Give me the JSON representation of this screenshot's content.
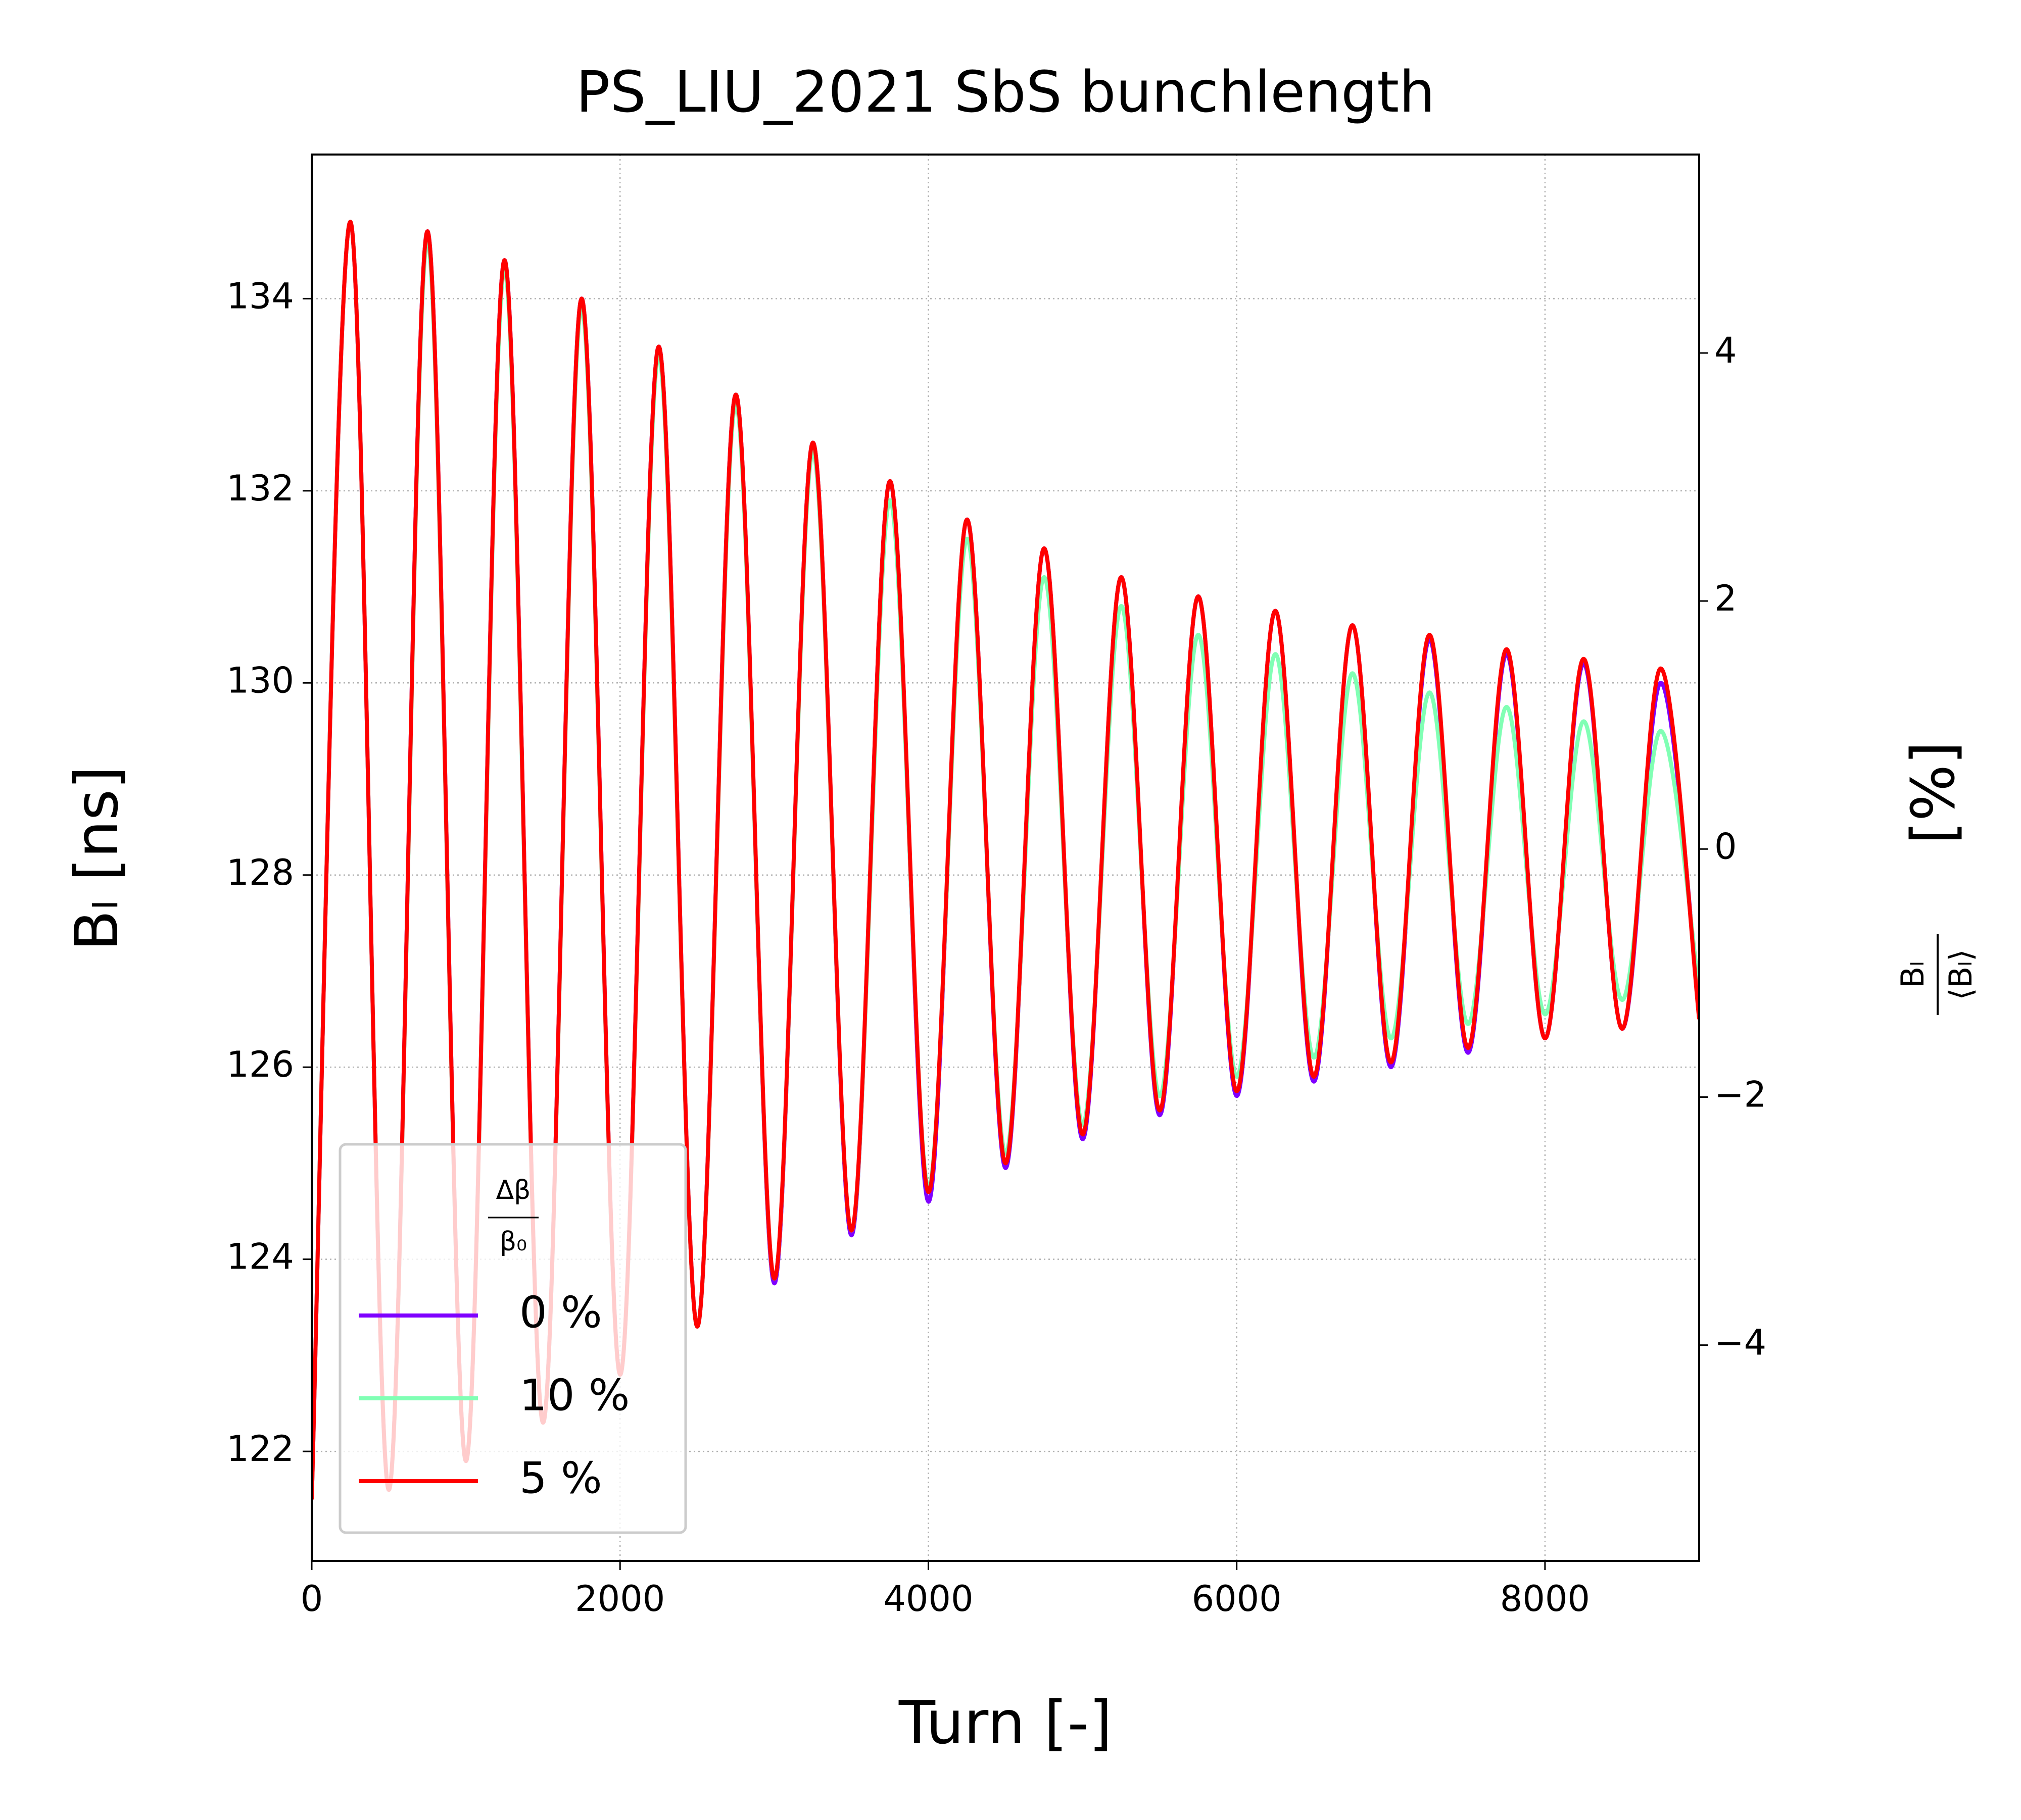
{
  "chart_data": {
    "type": "line",
    "title": "PS_LIU_2021 SbS bunchlength",
    "xlabel": "Turn [-]",
    "ylabel": "Bₗ [ns]",
    "y2label": {
      "numerator": "Bₗ",
      "denominator": "⟨Bₗ⟩",
      "unit": "[%]"
    },
    "legend_title": {
      "numerator": "Δβ",
      "denominator": "β₀"
    },
    "legend": "lower left",
    "grid": true,
    "x": [
      0,
      250,
      500,
      750,
      1000,
      1250,
      1500,
      1750,
      2000,
      2250,
      2500,
      2750,
      3000,
      3250,
      3500,
      3750,
      4000,
      4250,
      4500,
      4750,
      5000,
      5250,
      5500,
      5750,
      6000,
      6250,
      6500,
      6750,
      7000,
      7250,
      7500,
      7750,
      8000,
      8250,
      8500,
      8750,
      9000
    ],
    "series": [
      {
        "name": "0 %",
        "color": "#7f00ff",
        "values": [
          121.5,
          134.8,
          121.6,
          134.7,
          121.9,
          134.4,
          122.3,
          134.0,
          122.8,
          133.5,
          123.3,
          133.0,
          123.75,
          132.5,
          124.25,
          132.1,
          124.6,
          131.7,
          124.95,
          131.4,
          125.25,
          131.1,
          125.5,
          130.9,
          125.7,
          130.75,
          125.85,
          130.6,
          126.0,
          130.45,
          126.15,
          130.3,
          126.3,
          130.2,
          126.4,
          130.0,
          126.6
        ]
      },
      {
        "name": "10 %",
        "color": "#80ffb4",
        "values": [
          121.5,
          134.8,
          121.6,
          134.6,
          121.9,
          134.3,
          122.3,
          133.9,
          122.8,
          133.4,
          123.3,
          132.9,
          123.8,
          132.4,
          124.3,
          131.9,
          124.75,
          131.5,
          125.1,
          131.1,
          125.4,
          130.8,
          125.7,
          130.5,
          125.9,
          130.3,
          126.1,
          130.1,
          126.3,
          129.9,
          126.45,
          129.75,
          126.55,
          129.6,
          126.7,
          129.5,
          126.8
        ]
      },
      {
        "name": "5 %",
        "color": "#ff0000",
        "values": [
          121.5,
          134.8,
          121.6,
          134.7,
          121.9,
          134.4,
          122.3,
          134.0,
          122.8,
          133.5,
          123.3,
          133.0,
          123.8,
          132.5,
          124.3,
          132.1,
          124.7,
          131.7,
          125.0,
          131.4,
          125.3,
          131.1,
          125.55,
          130.9,
          125.75,
          130.75,
          125.9,
          130.6,
          126.05,
          130.5,
          126.2,
          130.35,
          126.3,
          130.25,
          126.4,
          130.15,
          126.5
        ]
      }
    ],
    "xlim": [
      0,
      9000
    ],
    "xticks": [
      0,
      2000,
      4000,
      6000,
      8000
    ],
    "ylim": [
      120.86,
      135.5
    ],
    "yticks": [
      122,
      124,
      126,
      128,
      130,
      132,
      134
    ],
    "y2lim": [
      -5.74,
      5.6
    ],
    "y2ticks": [
      {
        "value": -4,
        "label": "−4"
      },
      {
        "value": -2,
        "label": "−2"
      },
      0,
      2,
      4
    ]
  }
}
